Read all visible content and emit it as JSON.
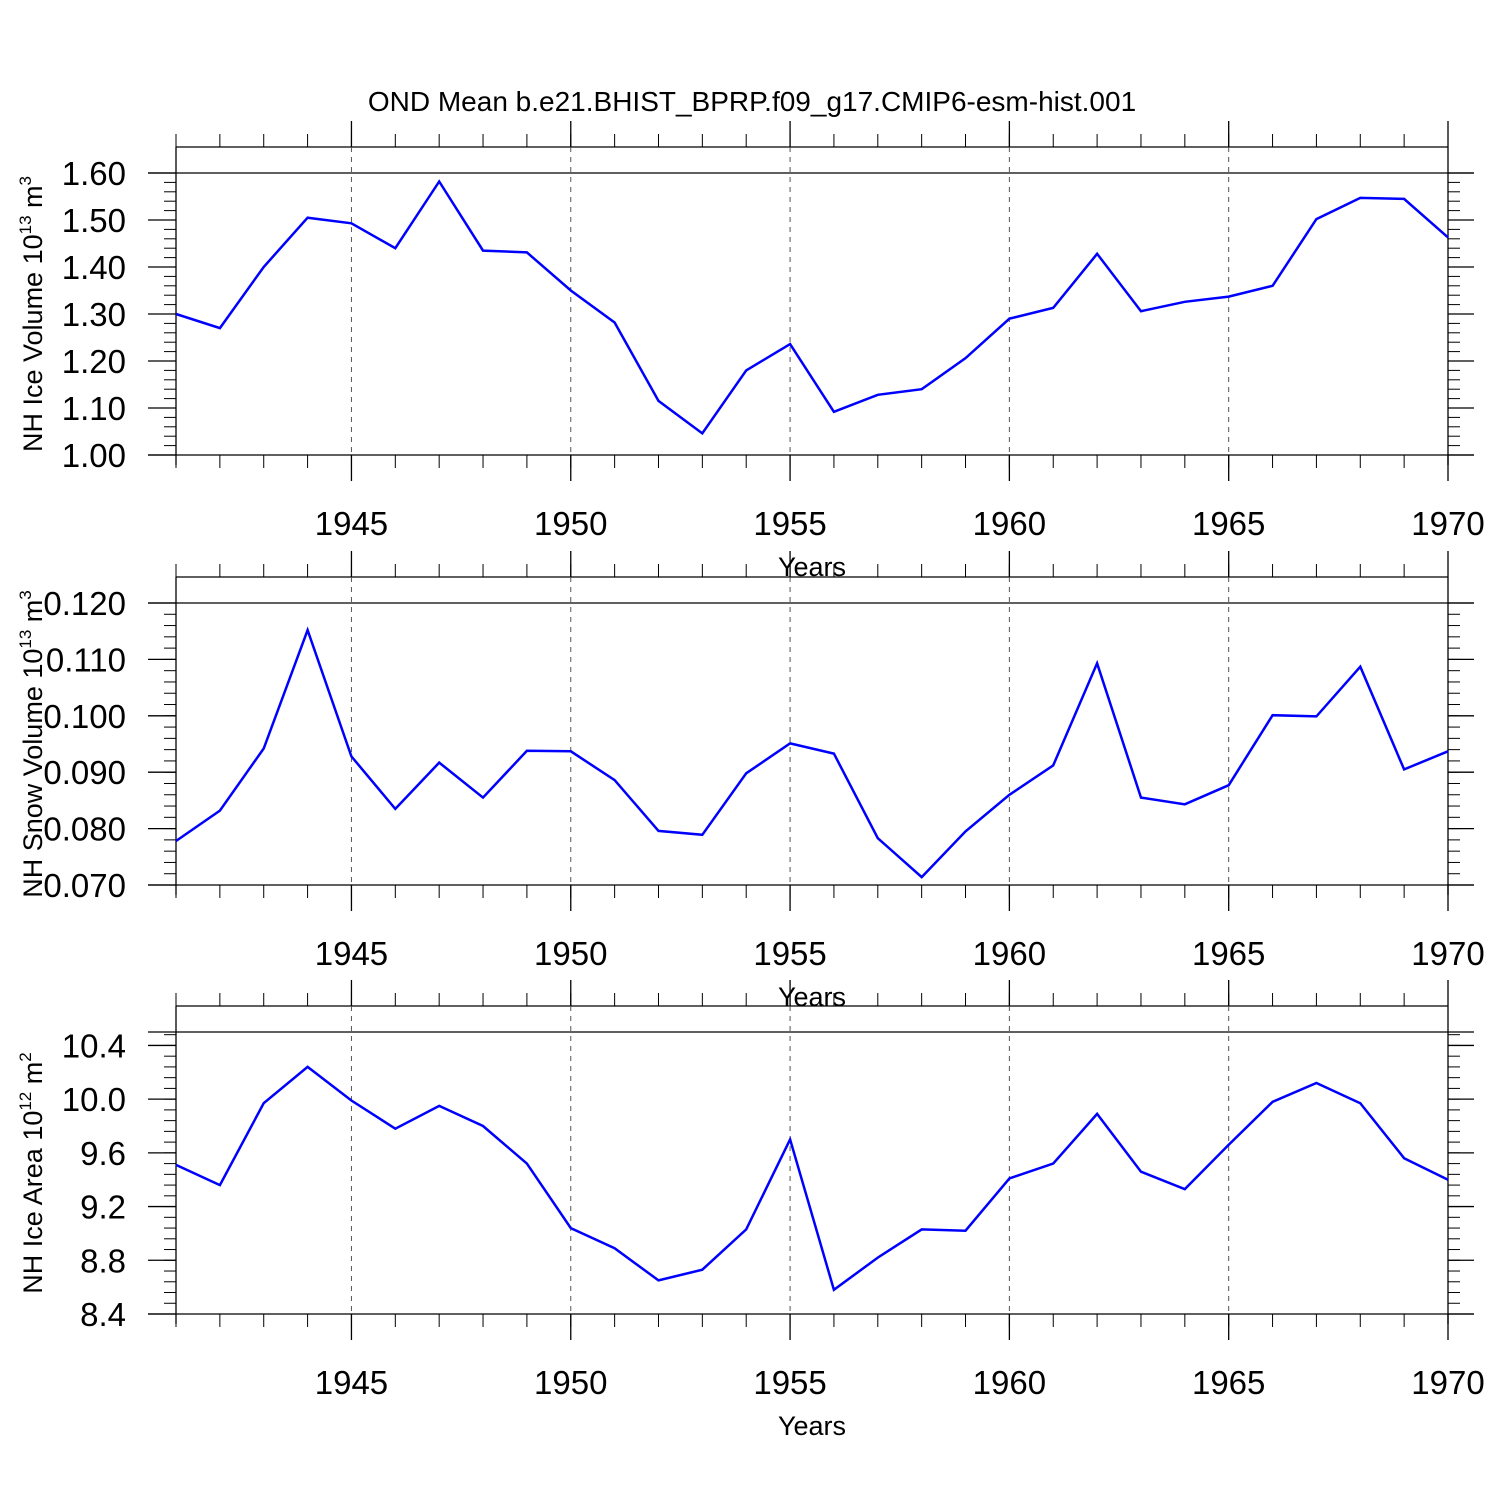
{
  "title": "OND Mean b.e21.BHIST_BPRP.f09_g17.CMIP6-esm-hist.001",
  "colors": {
    "line": "#0000ff",
    "axis": "#000000",
    "grid": "#555555",
    "background": "#ffffff"
  },
  "chart_data": [
    {
      "type": "line",
      "ylabel": {
        "prefix": "NH Ice Volume 10",
        "exp": "13",
        "unit": " m",
        "unit_exp": "3"
      },
      "xlabel": "Years",
      "xlim": [
        1941,
        1970
      ],
      "ylim": [
        1.0,
        1.6
      ],
      "x_ticks": [
        "1945",
        "1950",
        "1955",
        "1960",
        "1965",
        "1970"
      ],
      "y_ticks": [
        "1.00",
        "1.10",
        "1.20",
        "1.30",
        "1.40",
        "1.50",
        "1.60"
      ],
      "x": [
        1941,
        1942,
        1943,
        1944,
        1945,
        1946,
        1947,
        1948,
        1949,
        1950,
        1951,
        1952,
        1953,
        1954,
        1955,
        1956,
        1957,
        1958,
        1959,
        1960,
        1961,
        1962,
        1963,
        1964,
        1965,
        1966,
        1967,
        1968,
        1969,
        1970
      ],
      "series": [
        {
          "values": [
            1.3,
            1.27,
            1.4,
            1.505,
            1.493,
            1.44,
            1.582,
            1.435,
            1.431,
            1.35,
            1.282,
            1.115,
            1.046,
            1.18,
            1.236,
            1.092,
            1.128,
            1.14,
            1.206,
            1.29,
            1.313,
            1.428,
            1.306,
            1.326,
            1.337,
            1.36,
            1.502,
            1.547,
            1.545,
            1.463
          ]
        }
      ],
      "grid": "dashed vertical lines at labeled years"
    },
    {
      "type": "line",
      "ylabel": {
        "prefix": "NH Snow Volume 10",
        "exp": "13",
        "unit": " m",
        "unit_exp": "3"
      },
      "xlabel": "Years",
      "xlim": [
        1941,
        1970
      ],
      "ylim": [
        0.07,
        0.12
      ],
      "x_ticks": [
        "1945",
        "1950",
        "1955",
        "1960",
        "1965",
        "1970"
      ],
      "y_ticks": [
        "0.070",
        "0.080",
        "0.090",
        "0.100",
        "0.110",
        "0.120"
      ],
      "x": [
        1941,
        1942,
        1943,
        1944,
        1945,
        1946,
        1947,
        1948,
        1949,
        1950,
        1951,
        1952,
        1953,
        1954,
        1955,
        1956,
        1957,
        1958,
        1959,
        1960,
        1961,
        1962,
        1963,
        1964,
        1965,
        1966,
        1967,
        1968,
        1969,
        1970
      ],
      "series": [
        {
          "values": [
            0.0778,
            0.0832,
            0.0942,
            0.1152,
            0.0928,
            0.0835,
            0.0917,
            0.0855,
            0.0938,
            0.0937,
            0.0886,
            0.0796,
            0.0789,
            0.0898,
            0.0951,
            0.0933,
            0.0783,
            0.0714,
            0.0795,
            0.086,
            0.0912,
            0.1093,
            0.0855,
            0.0843,
            0.0877,
            0.1001,
            0.0999,
            0.1087,
            0.0905,
            0.0937
          ]
        }
      ],
      "grid": "dashed vertical lines at labeled years"
    },
    {
      "type": "line",
      "ylabel": {
        "prefix": "NH Ice Area 10",
        "exp": "12",
        "unit": " m",
        "unit_exp": "2"
      },
      "xlabel": "Years",
      "xlim": [
        1941,
        1970
      ],
      "ylim": [
        8.4,
        10.5
      ],
      "x_ticks": [
        "1945",
        "1950",
        "1955",
        "1960",
        "1965",
        "1970"
      ],
      "y_ticks": [
        "8.4",
        "8.8",
        "9.2",
        "9.6",
        "10.0",
        "10.4"
      ],
      "x": [
        1941,
        1942,
        1943,
        1944,
        1945,
        1946,
        1947,
        1948,
        1949,
        1950,
        1951,
        1952,
        1953,
        1954,
        1955,
        1956,
        1957,
        1958,
        1959,
        1960,
        1961,
        1962,
        1963,
        1964,
        1965,
        1966,
        1967,
        1968,
        1969,
        1970
      ],
      "series": [
        {
          "values": [
            9.51,
            9.36,
            9.97,
            10.24,
            9.99,
            9.78,
            9.95,
            9.8,
            9.52,
            9.04,
            8.89,
            8.65,
            8.73,
            9.03,
            9.7,
            8.58,
            8.82,
            9.03,
            9.02,
            9.41,
            9.52,
            9.89,
            9.46,
            9.33,
            9.66,
            9.98,
            10.12,
            9.97,
            9.56,
            9.4
          ]
        }
      ],
      "grid": "dashed vertical lines at labeled years"
    }
  ]
}
